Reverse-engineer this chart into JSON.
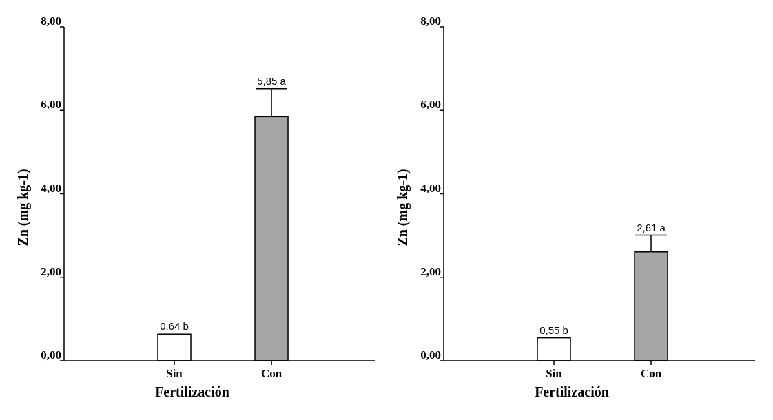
{
  "chart_data": [
    {
      "type": "bar",
      "categories": [
        "Sin",
        "Con"
      ],
      "values": [
        0.64,
        5.85
      ],
      "colors": [
        "#ffffff",
        "#a6a6a6"
      ],
      "errors": [
        null,
        0.67
      ],
      "value_labels": [
        "0,64 b",
        "5,85 a"
      ],
      "xlabel": "Fertilización",
      "ylabel": "Zn (mg kg-1)",
      "ylim": [
        0,
        8
      ],
      "yticks": [
        {
          "value": 0,
          "label": "0,00"
        },
        {
          "value": 2,
          "label": "2,00"
        },
        {
          "value": 4,
          "label": "4,00"
        },
        {
          "value": 6,
          "label": "6,00"
        },
        {
          "value": 8,
          "label": "8,00"
        }
      ],
      "grid": false
    },
    {
      "type": "bar",
      "categories": [
        "Sin",
        "Con"
      ],
      "values": [
        0.55,
        2.61
      ],
      "colors": [
        "#ffffff",
        "#a6a6a6"
      ],
      "errors": [
        null,
        0.4
      ],
      "value_labels": [
        "0,55 b",
        "2,61 a"
      ],
      "xlabel": "Fertilización",
      "ylabel": "Zn (mg kg-1)",
      "ylim": [
        0,
        8
      ],
      "yticks": [
        {
          "value": 0,
          "label": "0,00"
        },
        {
          "value": 2,
          "label": "2,00"
        },
        {
          "value": 4,
          "label": "4,00"
        },
        {
          "value": 6,
          "label": "6,00"
        },
        {
          "value": 8,
          "label": "8,00"
        }
      ],
      "grid": false
    }
  ]
}
